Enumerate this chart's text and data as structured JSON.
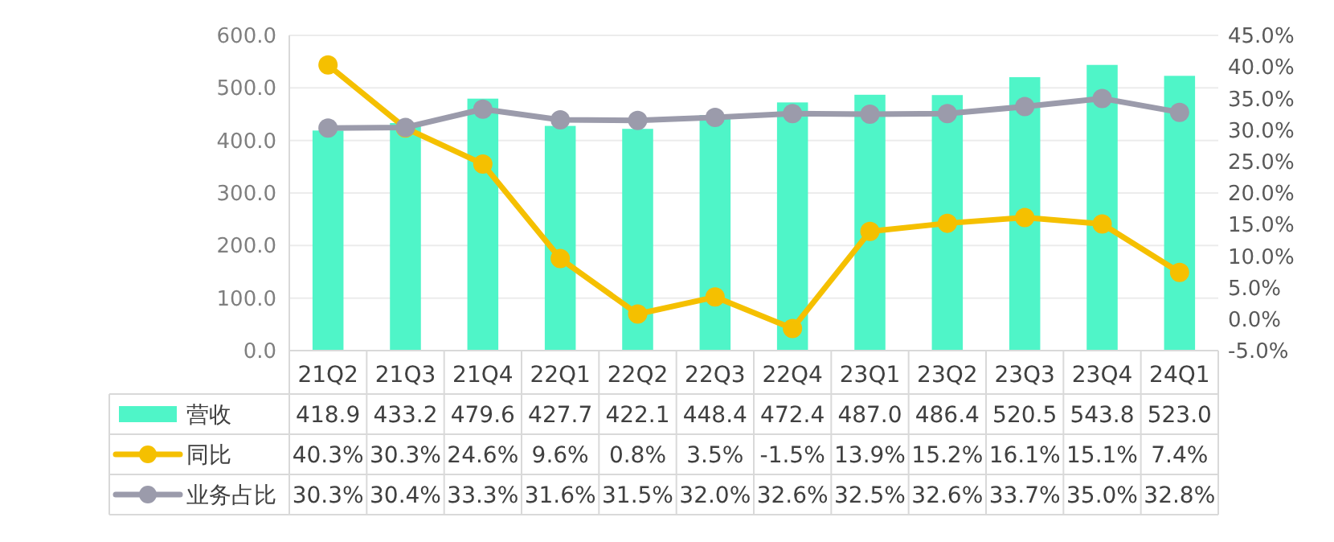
{
  "chart_data": {
    "type": "bar",
    "categories": [
      "21Q2",
      "21Q3",
      "21Q4",
      "22Q1",
      "22Q2",
      "22Q3",
      "22Q4",
      "23Q1",
      "23Q2",
      "23Q3",
      "23Q4",
      "24Q1"
    ],
    "series": [
      {
        "name": "营收",
        "color": "#4ff5c8",
        "values": [
          418.9,
          433.2,
          479.6,
          427.7,
          422.1,
          448.4,
          472.4,
          487.0,
          486.4,
          520.5,
          543.8,
          523.0
        ],
        "value_labels": [
          "418.9",
          "433.2",
          "479.6",
          "427.7",
          "422.1",
          "448.4",
          "472.4",
          "487.0",
          "486.4",
          "520.5",
          "543.8",
          "523.0"
        ]
      },
      {
        "name": "同比",
        "type": "line",
        "axis": "y2",
        "color": "#f5c000",
        "values": [
          40.3,
          30.3,
          24.6,
          9.6,
          0.8,
          3.5,
          -1.5,
          13.9,
          15.2,
          16.1,
          15.1,
          7.4
        ],
        "value_labels": [
          "40.3%",
          "30.3%",
          "24.6%",
          "9.6%",
          "0.8%",
          "3.5%",
          "-1.5%",
          "13.9%",
          "15.2%",
          "16.1%",
          "15.1%",
          "7.4%"
        ]
      },
      {
        "name": "业务占比",
        "type": "line",
        "axis": "y2",
        "color": "#9b9bab",
        "values": [
          30.3,
          30.4,
          33.3,
          31.6,
          31.5,
          32.0,
          32.6,
          32.5,
          32.6,
          33.7,
          35.0,
          32.8
        ],
        "value_labels": [
          "30.3%",
          "30.4%",
          "33.3%",
          "31.6%",
          "31.5%",
          "32.0%",
          "32.6%",
          "32.5%",
          "32.6%",
          "33.7%",
          "35.0%",
          "32.8%"
        ]
      }
    ],
    "ylim": [
      0,
      600
    ],
    "yticks": [
      {
        "value": 0,
        "label": "0.0"
      },
      {
        "value": 100,
        "label": "100.0"
      },
      {
        "value": 200,
        "label": "200.0"
      },
      {
        "value": 300,
        "label": "300.0"
      },
      {
        "value": 400,
        "label": "400.0"
      },
      {
        "value": 500,
        "label": "500.0"
      },
      {
        "value": 600,
        "label": "600.0"
      }
    ],
    "y2lim": [
      -5,
      45
    ],
    "y2ticks": [
      {
        "value": -5,
        "label": "-5.0%"
      },
      {
        "value": 0,
        "label": "0.0%"
      },
      {
        "value": 5,
        "label": "5.0%"
      },
      {
        "value": 10,
        "label": "10.0%"
      },
      {
        "value": 15,
        "label": "15.0%"
      },
      {
        "value": 20,
        "label": "20.0%"
      },
      {
        "value": 25,
        "label": "25.0%"
      },
      {
        "value": 30,
        "label": "30.0%"
      },
      {
        "value": 35,
        "label": "35.0%"
      },
      {
        "value": 40,
        "label": "40.0%"
      },
      {
        "value": 45,
        "label": "45.0%"
      }
    ],
    "grid": "y",
    "legend": "left",
    "marker": "circle",
    "line_style": "solid"
  }
}
